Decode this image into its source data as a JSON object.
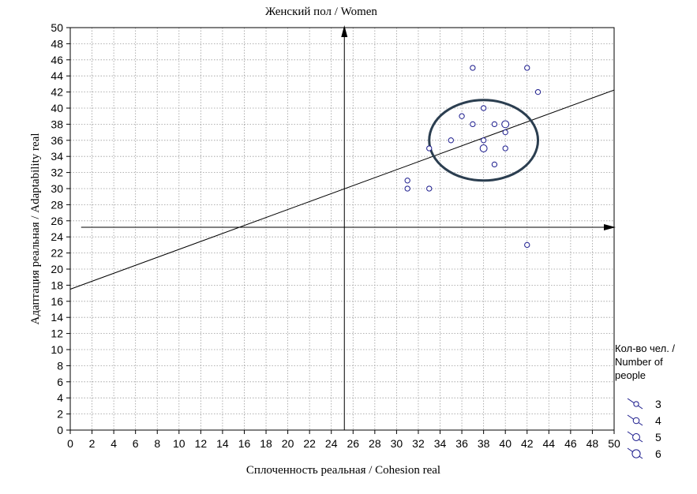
{
  "chart_data": {
    "type": "scatter",
    "title": "Женский пол / Women",
    "xlabel": "Сплоченность реальная / Cohesion real",
    "ylabel": "Адаптация реальная / Adaptability real",
    "xlim": [
      0,
      50
    ],
    "ylim": [
      0,
      50
    ],
    "x_ticks": [
      0,
      2,
      4,
      6,
      8,
      10,
      12,
      14,
      16,
      18,
      20,
      22,
      24,
      26,
      28,
      30,
      32,
      34,
      36,
      38,
      40,
      42,
      44,
      46,
      48,
      50
    ],
    "y_ticks": [
      0,
      2,
      4,
      6,
      8,
      10,
      12,
      14,
      16,
      18,
      20,
      22,
      24,
      26,
      28,
      30,
      32,
      34,
      36,
      38,
      40,
      42,
      44,
      46,
      48,
      50
    ],
    "grid": true,
    "point_color": "#1a1a8c",
    "points": [
      {
        "x": 37,
        "y": 45,
        "n": 3
      },
      {
        "x": 42,
        "y": 45,
        "n": 3
      },
      {
        "x": 43,
        "y": 42,
        "n": 3
      },
      {
        "x": 38,
        "y": 40,
        "n": 3
      },
      {
        "x": 36,
        "y": 39,
        "n": 3
      },
      {
        "x": 37,
        "y": 38,
        "n": 3
      },
      {
        "x": 39,
        "y": 38,
        "n": 3
      },
      {
        "x": 40,
        "y": 38,
        "n": 5
      },
      {
        "x": 40,
        "y": 37,
        "n": 3
      },
      {
        "x": 35,
        "y": 36,
        "n": 3
      },
      {
        "x": 38,
        "y": 36,
        "n": 3
      },
      {
        "x": 33,
        "y": 35,
        "n": 3
      },
      {
        "x": 38,
        "y": 35,
        "n": 5
      },
      {
        "x": 40,
        "y": 35,
        "n": 3
      },
      {
        "x": 39,
        "y": 33,
        "n": 3
      },
      {
        "x": 31,
        "y": 31,
        "n": 3
      },
      {
        "x": 31,
        "y": 30,
        "n": 3
      },
      {
        "x": 33,
        "y": 30,
        "n": 3
      },
      {
        "x": 42,
        "y": 23,
        "n": 3
      }
    ],
    "regression_line": {
      "intercept": 17.5,
      "slope": 0.495
    },
    "reference_lines": {
      "vertical_x": 25.2,
      "horizontal_y": 25.2
    },
    "highlight_ellipse": {
      "cx": 38,
      "cy": 36,
      "rx": 5,
      "ry": 5
    },
    "legend": {
      "title": "Кол-во чел. / Number of people",
      "placement": "right",
      "items": [
        {
          "label": "3",
          "size": 3
        },
        {
          "label": "4",
          "size": 4
        },
        {
          "label": "5",
          "size": 5
        },
        {
          "label": "6",
          "size": 6
        }
      ]
    }
  }
}
